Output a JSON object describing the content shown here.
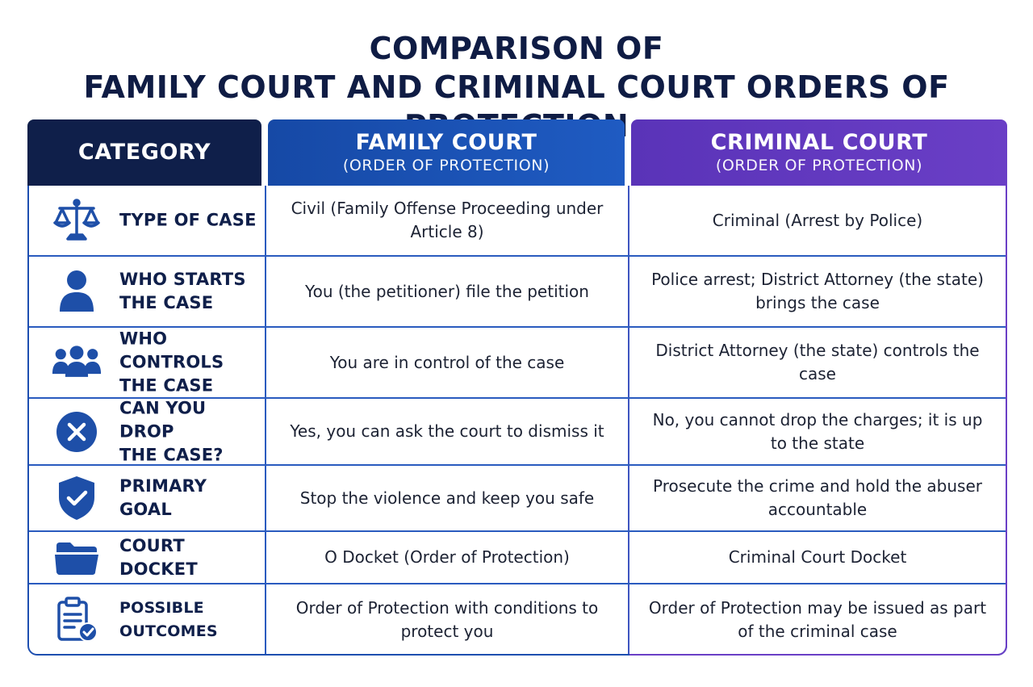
{
  "title": {
    "line1": "COMPARISON OF",
    "line2": "FAMILY COURT AND CRIMINAL COURT ORDERS OF PROTECTION"
  },
  "headers": {
    "category": "CATEGORY",
    "family": {
      "main": "FAMILY COURT",
      "sub": "(ORDER OF PROTECTION)"
    },
    "criminal": {
      "main": "CRIMINAL COURT",
      "sub": "(ORDER OF PROTECTION)"
    }
  },
  "colors": {
    "navy": "#0f1f4a",
    "family_blue": "#1f5bc2",
    "criminal_purple": "#6a3fc6",
    "icon_blue": "#1e4fa8"
  },
  "rows": [
    {
      "icon": "scales-icon",
      "category": [
        "TYPE OF CASE"
      ],
      "family": "Civil (Family Offense Proceeding under Article 8)",
      "criminal": "Criminal (Arrest by Police)"
    },
    {
      "icon": "person-icon",
      "category": [
        "WHO STARTS",
        "THE CASE"
      ],
      "family": "You (the petitioner) file the petition",
      "criminal": "Police arrest; District Attorney (the state) brings the case"
    },
    {
      "icon": "group-icon",
      "category": [
        "WHO CONTROLS",
        "THE CASE"
      ],
      "family": "You are in control of the case",
      "criminal": "District Attorney (the state) controls the case"
    },
    {
      "icon": "x-circle-icon",
      "category": [
        "CAN YOU DROP",
        "THE CASE?"
      ],
      "family": "Yes, you can ask the court to dismiss it",
      "criminal": "No, you cannot drop the charges; it is up to the state"
    },
    {
      "icon": "shield-check-icon",
      "category": [
        "PRIMARY GOAL"
      ],
      "family": "Stop the violence and keep you safe",
      "criminal": "Prosecute the crime and hold the abuser accountable"
    },
    {
      "icon": "folder-icon",
      "category": [
        "COURT DOCKET"
      ],
      "family": "O Docket (Order of Protection)",
      "criminal": "Criminal Court Docket"
    },
    {
      "icon": "clipboard-check-icon",
      "category": [
        "POSSIBLE OUTCOMES"
      ],
      "family": "Order of Protection with conditions to protect you",
      "criminal": "Order of Protection may be issued as part of the criminal case"
    }
  ]
}
